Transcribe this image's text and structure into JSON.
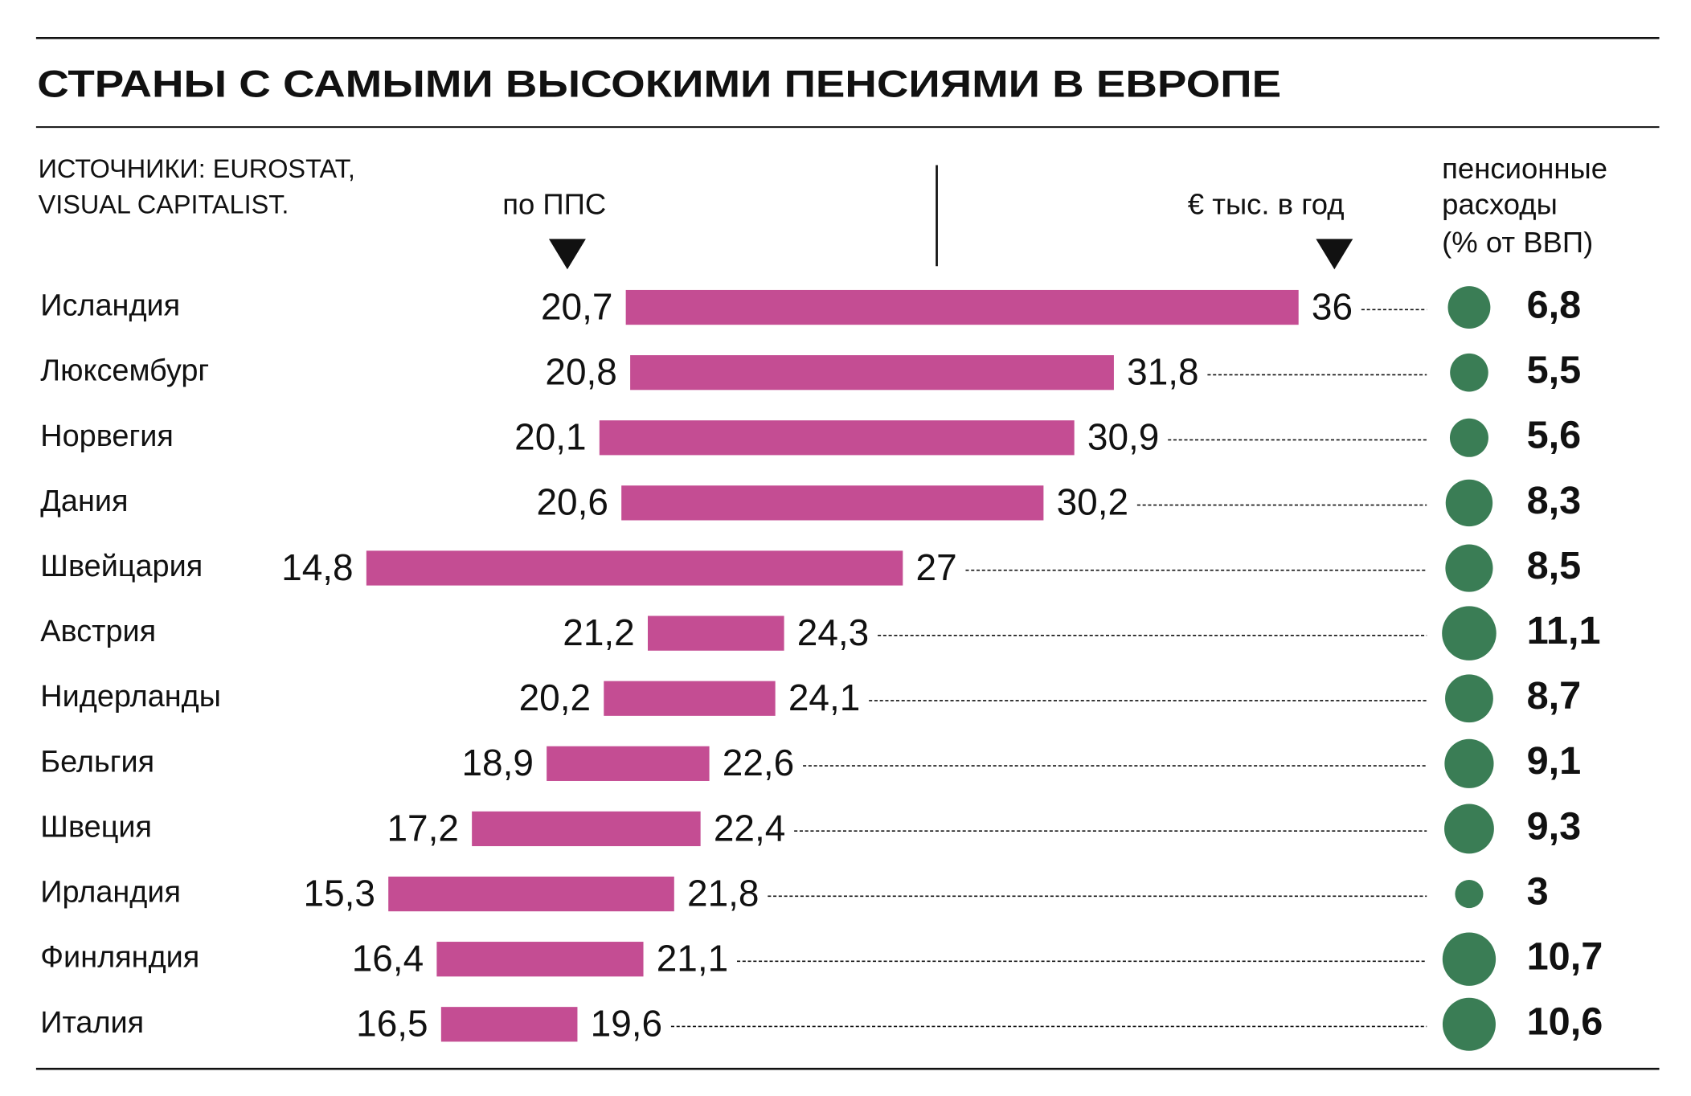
{
  "chart_data": {
    "type": "range_bar",
    "title": "СТРАНЫ С САМЫМИ ВЫСОКИМИ ПЕНСИЯМИ В ЕВРОПЕ",
    "source": [
      "ИСТОЧНИКИ: EUROSTAT,",
      "VISUAL CAPITALIST."
    ],
    "bubble_title": [
      "пенсионные",
      "расходы",
      "(% от ВВП)"
    ],
    "categories": [
      "Исландия",
      "Люксембург",
      "Норвегия",
      "Дания",
      "Швейцария",
      "Австрия",
      "Нидерланды",
      "Бельгия",
      "Швеция",
      "Ирландия",
      "Финляндия",
      "Италия"
    ],
    "series": [
      {
        "name": "по ППС",
        "color": "#c44d93",
        "values": [
          20.7,
          20.8,
          20.1,
          20.6,
          14.8,
          21.2,
          20.2,
          18.9,
          17.2,
          15.3,
          16.4,
          16.5
        ],
        "value_labels": [
          "20,7",
          "20,8",
          "20,1",
          "20,6",
          "14,8",
          "21,2",
          "20,2",
          "18,9",
          "17,2",
          "15,3",
          "16,4",
          "16,5"
        ]
      },
      {
        "name": "€ тыс. в год",
        "color": "#c44d93",
        "values": [
          36,
          31.8,
          30.9,
          30.2,
          27,
          24.3,
          24.1,
          22.6,
          22.4,
          21.8,
          21.1,
          19.6
        ],
        "value_labels": [
          "36",
          "31,8",
          "30,9",
          "30,2",
          "27",
          "24,3",
          "24,1",
          "22,6",
          "22,4",
          "21,8",
          "21,1",
          "19,6"
        ]
      },
      {
        "color": "#3a7d55",
        "values": [
          6.8,
          5.5,
          5.6,
          8.3,
          8.5,
          11.1,
          8.7,
          9.1,
          9.3,
          3,
          10.7,
          10.6
        ],
        "value_labels": [
          "6,8",
          "5,5",
          "5,6",
          "8,3",
          "8,5",
          "11,1",
          "8,7",
          "9,1",
          "9,3",
          "3",
          "10,7",
          "10,6"
        ]
      }
    ]
  }
}
